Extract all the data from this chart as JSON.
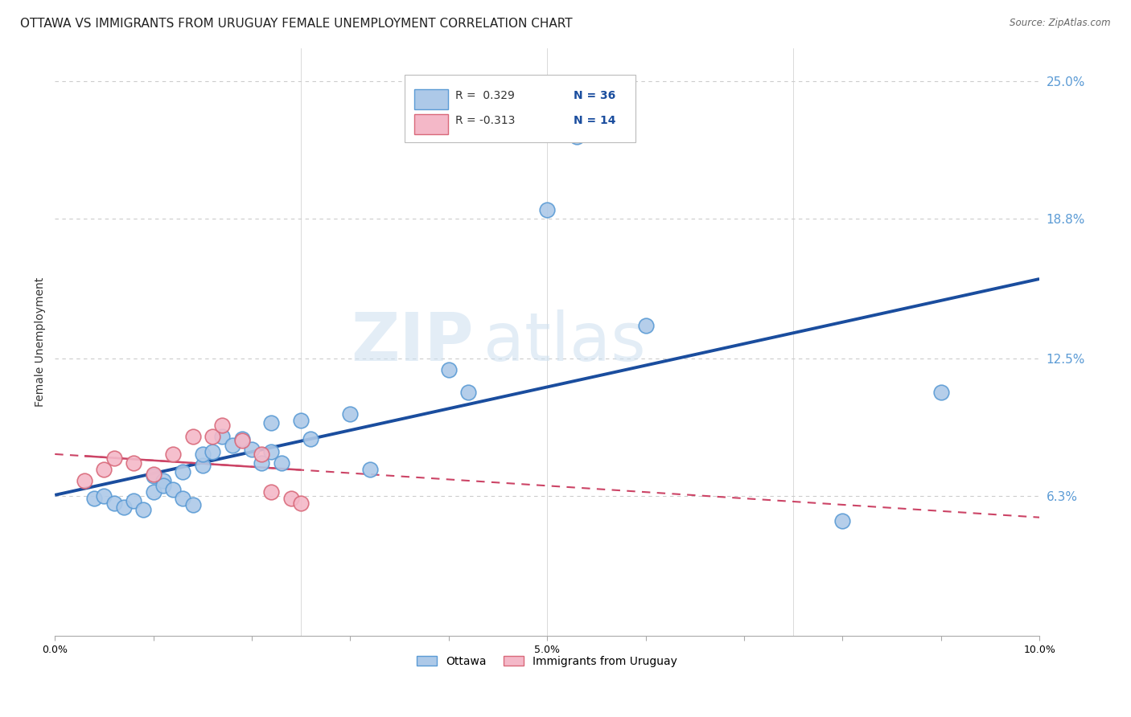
{
  "title": "OTTAWA VS IMMIGRANTS FROM URUGUAY FEMALE UNEMPLOYMENT CORRELATION CHART",
  "source": "Source: ZipAtlas.com",
  "ylabel": "Female Unemployment",
  "watermark_zip": "ZIP",
  "watermark_atlas": "atlas",
  "xlim": [
    0.0,
    0.1
  ],
  "ylim": [
    0.0,
    0.265
  ],
  "ytick_labels": [
    "6.3%",
    "12.5%",
    "18.8%",
    "25.0%"
  ],
  "ytick_values": [
    0.063,
    0.125,
    0.188,
    0.25
  ],
  "xtick_labels": [
    "0.0%",
    "",
    "",
    "",
    "",
    "5.0%",
    "",
    "",
    "",
    "",
    "10.0%"
  ],
  "xtick_values": [
    0.0,
    0.01,
    0.02,
    0.03,
    0.04,
    0.05,
    0.06,
    0.07,
    0.08,
    0.09,
    0.1
  ],
  "ottawa_color": "#adc9e8",
  "ottawa_edge_color": "#5b9bd5",
  "uruguay_color": "#f4b8c8",
  "uruguay_edge_color": "#d9697a",
  "trend_ottawa_color": "#1a4d9e",
  "trend_uruguay_color": "#cc4466",
  "legend_r_ottawa": "R =  0.329",
  "legend_n_ottawa": "N = 36",
  "legend_r_uruguay": "R = -0.313",
  "legend_n_uruguay": "N = 14",
  "ottawa_x": [
    0.004,
    0.005,
    0.006,
    0.007,
    0.008,
    0.009,
    0.01,
    0.01,
    0.011,
    0.011,
    0.012,
    0.013,
    0.013,
    0.014,
    0.015,
    0.015,
    0.016,
    0.017,
    0.018,
    0.019,
    0.02,
    0.021,
    0.022,
    0.022,
    0.023,
    0.025,
    0.026,
    0.03,
    0.032,
    0.04,
    0.042,
    0.05,
    0.053,
    0.06,
    0.08,
    0.09
  ],
  "ottawa_y": [
    0.062,
    0.063,
    0.06,
    0.058,
    0.061,
    0.057,
    0.065,
    0.072,
    0.07,
    0.068,
    0.066,
    0.062,
    0.074,
    0.059,
    0.077,
    0.082,
    0.083,
    0.09,
    0.086,
    0.089,
    0.084,
    0.078,
    0.096,
    0.083,
    0.078,
    0.097,
    0.089,
    0.1,
    0.075,
    0.12,
    0.11,
    0.192,
    0.225,
    0.14,
    0.052,
    0.11
  ],
  "uruguay_x": [
    0.003,
    0.005,
    0.006,
    0.008,
    0.01,
    0.012,
    0.014,
    0.016,
    0.017,
    0.019,
    0.021,
    0.022,
    0.024,
    0.025
  ],
  "uruguay_y": [
    0.07,
    0.075,
    0.08,
    0.078,
    0.073,
    0.082,
    0.09,
    0.09,
    0.095,
    0.088,
    0.082,
    0.065,
    0.062,
    0.06
  ],
  "background_color": "#ffffff",
  "grid_color": "#cccccc",
  "title_fontsize": 11,
  "axis_label_fontsize": 9,
  "tick_fontsize": 9,
  "right_tick_color": "#5b9bd5"
}
